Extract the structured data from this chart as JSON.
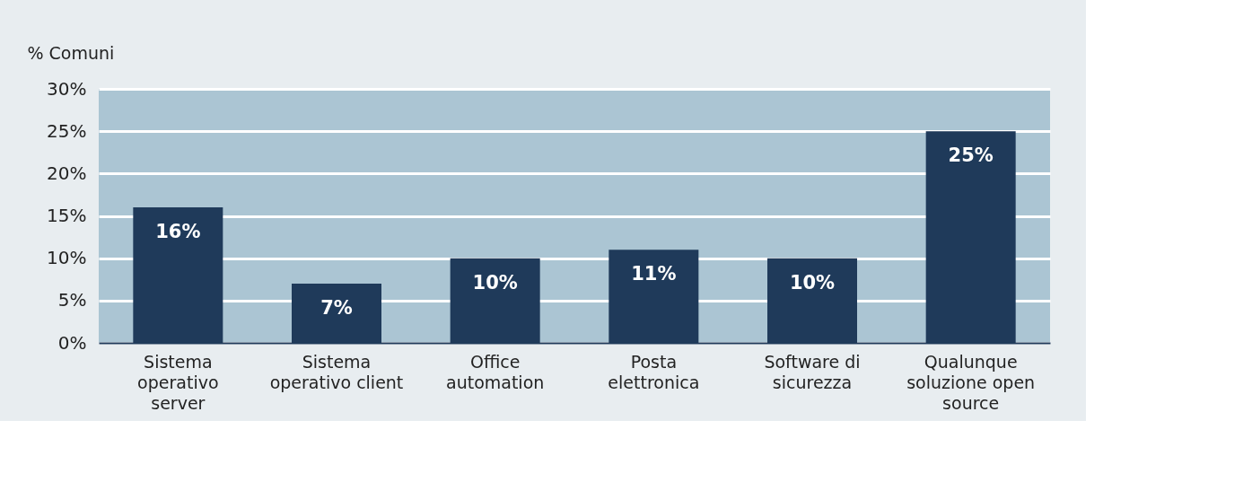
{
  "chart_data": {
    "type": "bar",
    "ylabel": "% Comuni",
    "categories": [
      "Sistema\noperativo\nserver",
      "Sistema\noperativo client",
      "Office\nautomation",
      "Posta\nelettronica",
      "Software di\nsicurezza",
      "Qualunque\nsoluzione open\nsource"
    ],
    "values": [
      16,
      7,
      10,
      11,
      10,
      25
    ],
    "value_labels": [
      "16%",
      "7%",
      "10%",
      "11%",
      "10%",
      "25%"
    ],
    "color": "#1f3a5a",
    "ylim": [
      0,
      30
    ],
    "yticks": [
      {
        "value": 0,
        "label": "0%"
      },
      {
        "value": 5,
        "label": "5%"
      },
      {
        "value": 10,
        "label": "10%"
      },
      {
        "value": 15,
        "label": "15%"
      },
      {
        "value": 20,
        "label": "20%"
      },
      {
        "value": 25,
        "label": "25%"
      },
      {
        "value": 30,
        "label": "30%"
      }
    ],
    "grid": "y"
  }
}
